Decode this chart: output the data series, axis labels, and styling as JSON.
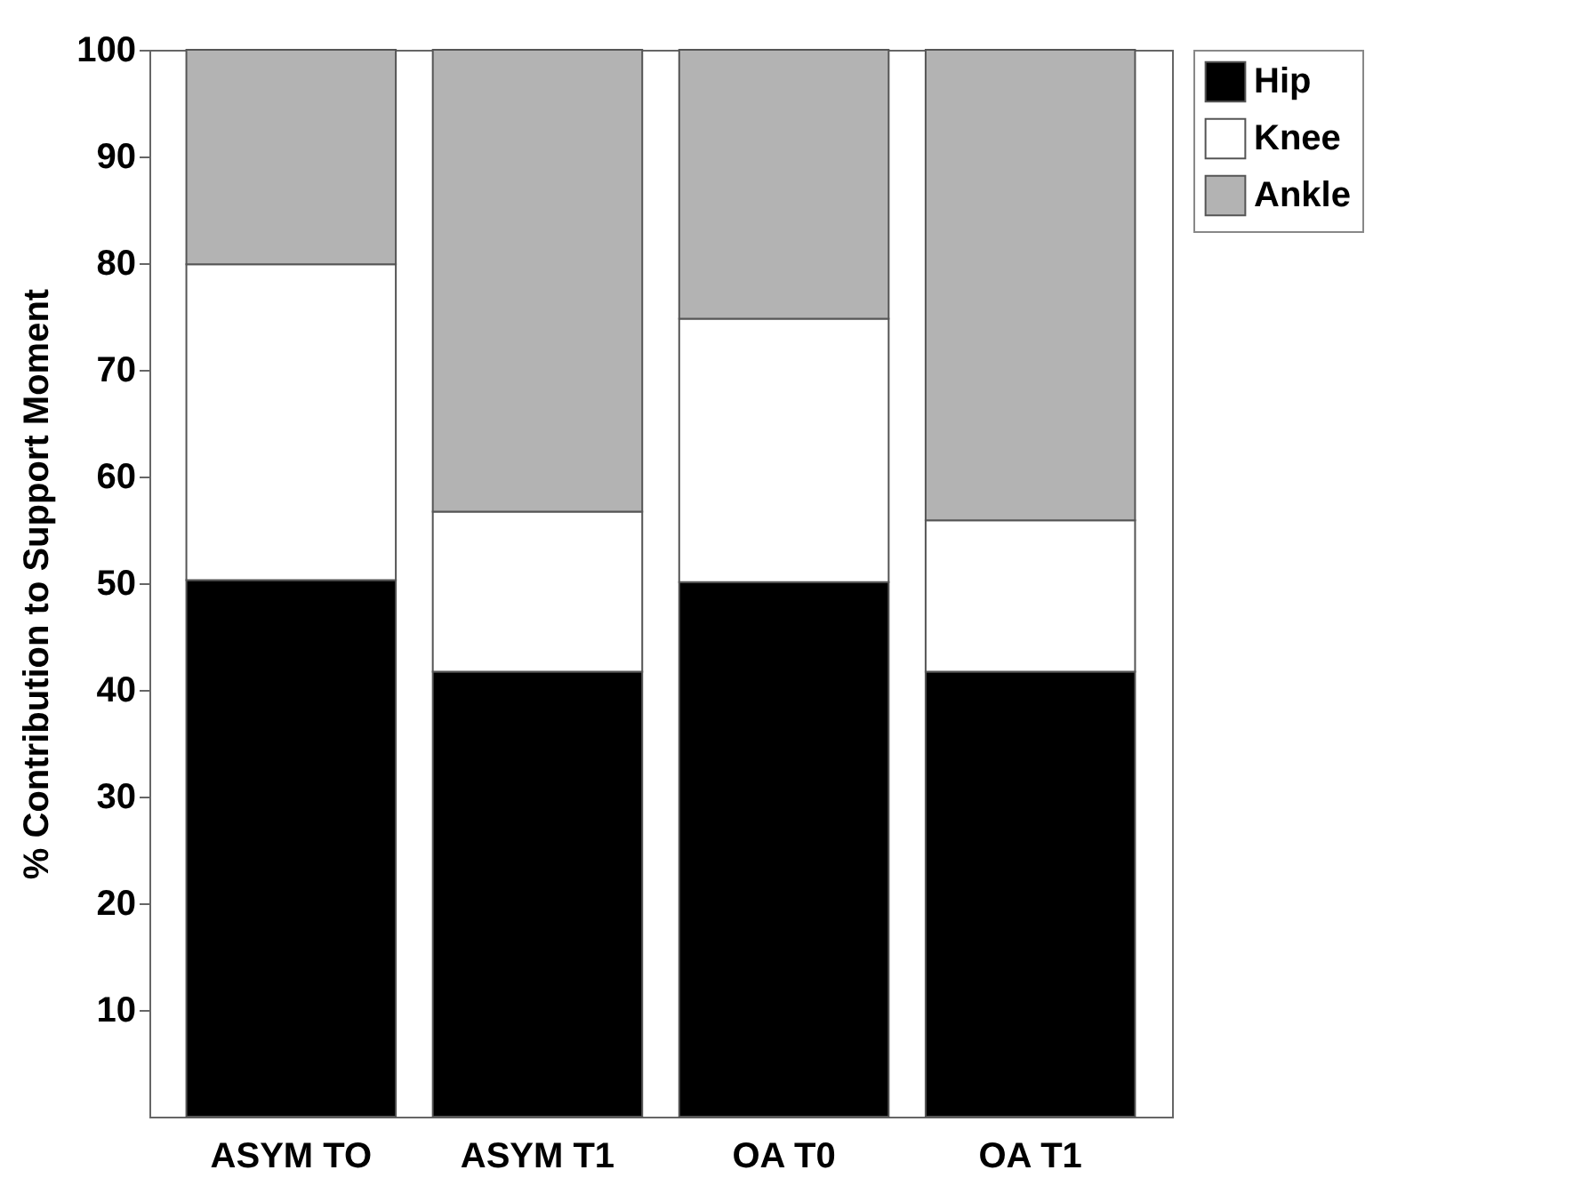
{
  "chart_data": {
    "type": "bar",
    "stacked": true,
    "ylabel": "% Contribution to Support Moment",
    "categories": [
      "ASYM TO",
      "ASYM T1",
      "OA T0",
      "OA T1"
    ],
    "series": [
      {
        "name": "Hip",
        "color": "#000000",
        "values": [
          50.3,
          41.7,
          50.1,
          41.7
        ]
      },
      {
        "name": "Knee",
        "color": "#ffffff",
        "values": [
          29.6,
          15.0,
          24.7,
          14.2
        ]
      },
      {
        "name": "Ankle",
        "color": "#b3b3b3",
        "values": [
          20.1,
          43.3,
          25.2,
          44.1
        ]
      }
    ],
    "ylim": [
      0,
      100
    ],
    "yticks": [
      10,
      20,
      30,
      40,
      50,
      60,
      70,
      80,
      90,
      100
    ],
    "grid": false,
    "legend": "top right"
  }
}
